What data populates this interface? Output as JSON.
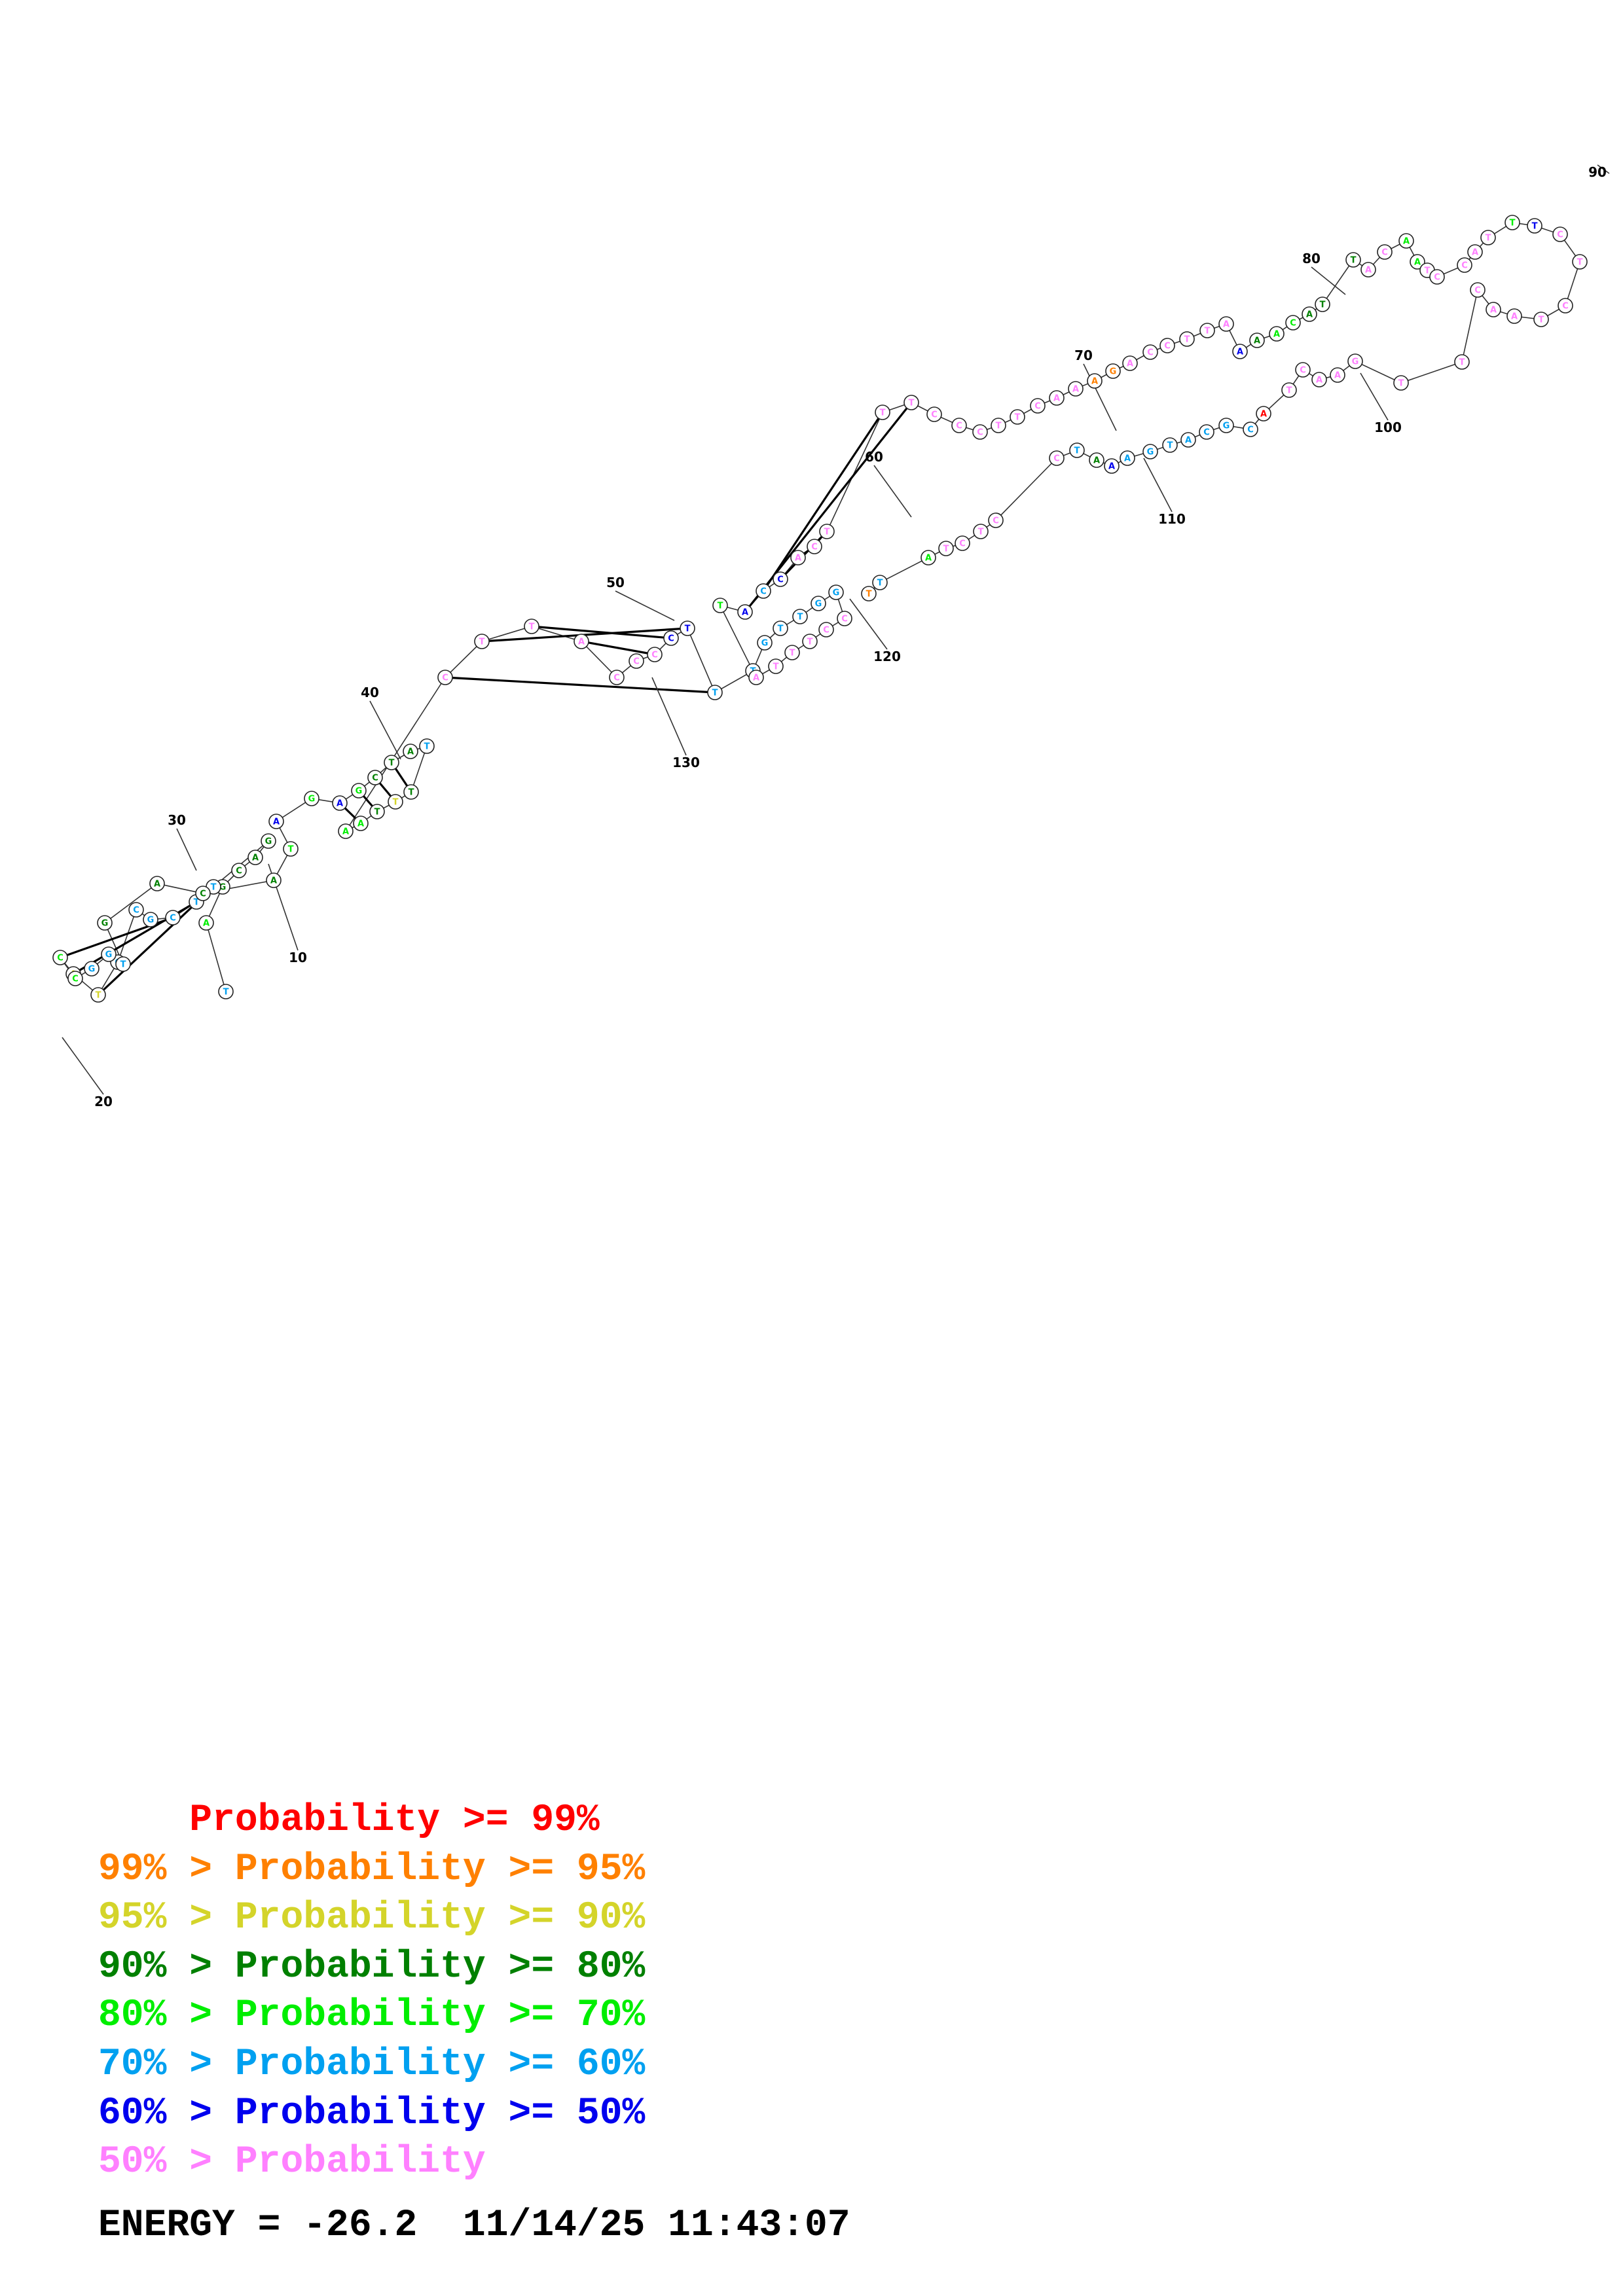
{
  "colors": {
    "p99": "#ff0000",
    "p95": "#ff8000",
    "p90": "#d4d42a",
    "p80": "#008000",
    "p70": "#00ee00",
    "p60": "#00a0f0",
    "p50": "#0000ee",
    "lt50": "#ff80ff"
  },
  "legend": [
    {
      "prefix": "    ",
      "text": "Probability >= 99%",
      "color": "p99"
    },
    {
      "prefix": "99% > ",
      "text": "Probability >= 95%",
      "color": "p95"
    },
    {
      "prefix": "95% > ",
      "text": "Probability >= 90%",
      "color": "p90"
    },
    {
      "prefix": "90% > ",
      "text": "Probability >= 80%",
      "color": "p80"
    },
    {
      "prefix": "80% > ",
      "text": "Probability >= 70%",
      "color": "p70"
    },
    {
      "prefix": "70% > ",
      "text": "Probability >= 60%",
      "color": "p60"
    },
    {
      "prefix": "60% > ",
      "text": "Probability >= 50%",
      "color": "p50"
    },
    {
      "prefix": "50% > ",
      "text": "Probability",
      "color": "lt50"
    }
  ],
  "energy": {
    "label": "ENERGY = -26.2",
    "timestamp": "11/14/25 11:43:07"
  },
  "position_labels": [
    "10",
    "20",
    "30",
    "40",
    "50",
    "60",
    "70",
    "80",
    "90",
    "100",
    "110",
    "120",
    "130"
  ],
  "structure": {
    "strands": [
      {
        "name": "strand-a",
        "nts": [
          [
            "T",
            "p60"
          ],
          [
            "A",
            "p70"
          ],
          [
            "G",
            "p80"
          ],
          [
            "C",
            "p80"
          ],
          [
            "A",
            "p80"
          ],
          [
            "G",
            "p80"
          ],
          [
            "T",
            "p60"
          ],
          [
            "T",
            "p60"
          ],
          [
            "C",
            "p60"
          ],
          [
            "G",
            "p60"
          ],
          [
            "C",
            "p60"
          ],
          [
            "C",
            "p60"
          ],
          [
            "T",
            "p90"
          ],
          [
            "A",
            "p90"
          ],
          [
            "C",
            "p70"
          ],
          [
            "C",
            "p70"
          ],
          [
            "G",
            "p60"
          ],
          [
            "G",
            "p60"
          ],
          [
            "T",
            "p60"
          ],
          [
            "G",
            "p80"
          ],
          [
            "A",
            "p80"
          ],
          [
            "C",
            "p80"
          ],
          [
            "A",
            "p80"
          ],
          [
            "T",
            "p70"
          ],
          [
            "A",
            "p50"
          ],
          [
            "G",
            "p70"
          ],
          [
            "A",
            "p50"
          ],
          [
            "G",
            "p70"
          ],
          [
            "C",
            "p80"
          ],
          [
            "T",
            "p80"
          ],
          [
            "A",
            "p80"
          ],
          [
            "T",
            "p60"
          ],
          [
            "T",
            "p80"
          ],
          [
            "T",
            "p90"
          ],
          [
            "T",
            "p80"
          ],
          [
            "A",
            "p70"
          ],
          [
            "A",
            "p70"
          ],
          [
            "C",
            "lt50"
          ],
          [
            "T",
            "lt50"
          ],
          [
            "T",
            "lt50"
          ],
          [
            "A",
            "lt50"
          ],
          [
            "C",
            "lt50"
          ],
          [
            "C",
            "lt50"
          ],
          [
            "C",
            "lt50"
          ],
          [
            "C",
            "p50"
          ],
          [
            "T",
            "p50"
          ],
          [
            "T",
            "p60"
          ],
          [
            "T",
            "p60"
          ],
          [
            "G",
            "p60"
          ],
          [
            "T",
            "p60"
          ],
          [
            "T",
            "p60"
          ],
          [
            "G",
            "p60"
          ],
          [
            "G",
            "p60"
          ],
          [
            "C",
            "lt50"
          ],
          [
            "C",
            "lt50"
          ],
          [
            "T",
            "lt50"
          ],
          [
            "T",
            "lt50"
          ],
          [
            "T",
            "lt50"
          ],
          [
            "A",
            "lt50"
          ],
          [
            "T",
            "p70"
          ],
          [
            "A",
            "p50"
          ],
          [
            "C",
            "p60"
          ],
          [
            "C",
            "p50"
          ],
          [
            "A",
            "lt50"
          ],
          [
            "C",
            "lt50"
          ],
          [
            "T",
            "lt50"
          ],
          [
            "T",
            "lt50"
          ],
          [
            "T",
            "lt50"
          ],
          [
            "C",
            "lt50"
          ],
          [
            "C",
            "lt50"
          ],
          [
            "C",
            "lt50"
          ],
          [
            "T",
            "lt50"
          ],
          [
            "T",
            "lt50"
          ],
          [
            "C",
            "lt50"
          ],
          [
            "A",
            "lt50"
          ],
          [
            "A",
            "lt50"
          ],
          [
            "A",
            "p95"
          ],
          [
            "G",
            "p95"
          ],
          [
            "A",
            "lt50"
          ],
          [
            "C",
            "lt50"
          ],
          [
            "C",
            "lt50"
          ],
          [
            "T",
            "lt50"
          ],
          [
            "T",
            "lt50"
          ],
          [
            "A",
            "lt50"
          ],
          [
            "A",
            "p50"
          ],
          [
            "A",
            "p80"
          ],
          [
            "A",
            "p70"
          ],
          [
            "C",
            "p70"
          ],
          [
            "A",
            "p80"
          ],
          [
            "T",
            "p80"
          ],
          [
            "T",
            "p80"
          ],
          [
            "A",
            "lt50"
          ],
          [
            "C",
            "lt50"
          ],
          [
            "A",
            "p70"
          ],
          [
            "A",
            "p70"
          ],
          [
            "T",
            "lt50"
          ],
          [
            "C",
            "lt50"
          ],
          [
            "C",
            "lt50"
          ],
          [
            "A",
            "lt50"
          ],
          [
            "T",
            "lt50"
          ],
          [
            "T",
            "p70"
          ],
          [
            "T",
            "p50"
          ],
          [
            "C",
            "lt50"
          ],
          [
            "T",
            "lt50"
          ],
          [
            "C",
            "lt50"
          ],
          [
            "T",
            "lt50"
          ],
          [
            "A",
            "lt50"
          ],
          [
            "A",
            "lt50"
          ],
          [
            "C",
            "lt50"
          ],
          [
            "T",
            "lt50"
          ],
          [
            "T",
            "lt50"
          ],
          [
            "G",
            "lt50"
          ],
          [
            "A",
            "lt50"
          ],
          [
            "A",
            "lt50"
          ],
          [
            "C",
            "lt50"
          ],
          [
            "T",
            "lt50"
          ],
          [
            "A",
            "p99"
          ],
          [
            "C",
            "p60"
          ],
          [
            "G",
            "p60"
          ],
          [
            "C",
            "p60"
          ],
          [
            "A",
            "p60"
          ],
          [
            "T",
            "p60"
          ],
          [
            "G",
            "p60"
          ],
          [
            "A",
            "p60"
          ],
          [
            "A",
            "p50"
          ],
          [
            "A",
            "p80"
          ],
          [
            "T",
            "p60"
          ],
          [
            "C",
            "lt50"
          ],
          [
            "C",
            "lt50"
          ],
          [
            "T",
            "lt50"
          ],
          [
            "C",
            "lt50"
          ],
          [
            "T",
            "lt50"
          ],
          [
            "A",
            "p70"
          ],
          [
            "T",
            "p60"
          ],
          [
            "T",
            "p95"
          ]
        ]
      }
    ]
  }
}
